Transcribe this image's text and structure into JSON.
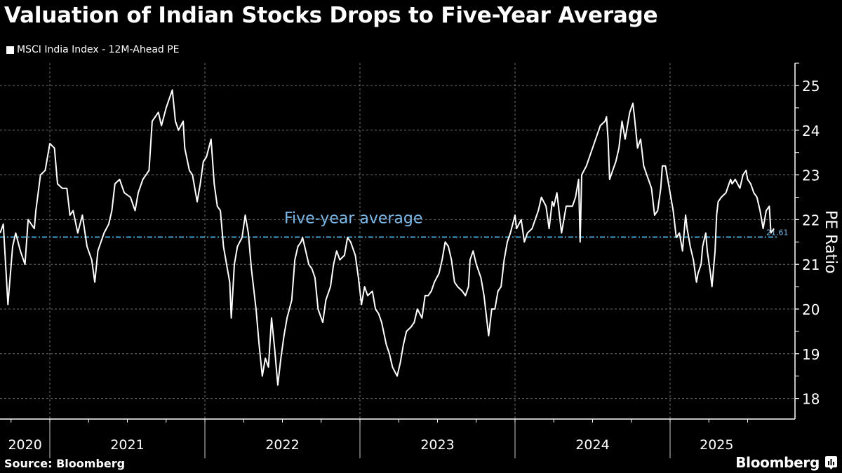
{
  "title": "Valuation of Indian Stocks Drops to Five-Year Average",
  "legend": {
    "label": "MSCI India Index - 12M-Ahead PE"
  },
  "footer": {
    "source": "Source: Bloomberg",
    "brand": "Bloomberg"
  },
  "icons": {
    "brand_icon": "bloomberg-chart-icon"
  },
  "colors": {
    "line": "#ffffff",
    "average": "#4ab8e6",
    "annotation": "#7ab8e8",
    "grid": "#8a8a8a"
  },
  "chart_data": {
    "type": "line",
    "title": "Valuation of Indian Stocks Drops to Five-Year Average",
    "xlabel": "",
    "ylabel": "PE Ratio",
    "ylim": [
      17.6,
      25.4
    ],
    "xlim": [
      2020.68,
      2025.41
    ],
    "y_ticks": [
      18,
      19,
      20,
      21,
      22,
      23,
      24,
      25
    ],
    "x_tick_labels": [
      "2020",
      "2021",
      "2022",
      "2023",
      "2024",
      "2025"
    ],
    "x_tick_label_positions": [
      2020.84,
      2021.5,
      2022.5,
      2023.5,
      2024.5,
      2025.3
    ],
    "year_boundaries": [
      2021,
      2022,
      2023,
      2024,
      2025
    ],
    "grid": true,
    "legend_position": "top-left",
    "reference_line": {
      "label": "Five-year average",
      "value": 21.61,
      "value_label": "21.61"
    },
    "series": [
      {
        "name": "MSCI India Index - 12M-Ahead PE",
        "points": [
          [
            2020.68,
            21.7
          ],
          [
            2020.7,
            21.9
          ],
          [
            2020.73,
            20.1
          ],
          [
            2020.76,
            21.4
          ],
          [
            2020.78,
            21.7
          ],
          [
            2020.81,
            21.3
          ],
          [
            2020.84,
            21.0
          ],
          [
            2020.86,
            22.0
          ],
          [
            2020.9,
            21.8
          ],
          [
            2020.91,
            22.2
          ],
          [
            2020.94,
            23.0
          ],
          [
            2020.97,
            23.1
          ],
          [
            2021.0,
            23.7
          ],
          [
            2021.03,
            23.6
          ],
          [
            2021.05,
            22.8
          ],
          [
            2021.08,
            22.7
          ],
          [
            2021.11,
            22.7
          ],
          [
            2021.13,
            22.1
          ],
          [
            2021.15,
            22.2
          ],
          [
            2021.18,
            21.7
          ],
          [
            2021.21,
            22.1
          ],
          [
            2021.24,
            21.4
          ],
          [
            2021.27,
            21.1
          ],
          [
            2021.29,
            20.6
          ],
          [
            2021.31,
            21.3
          ],
          [
            2021.35,
            21.7
          ],
          [
            2021.38,
            21.9
          ],
          [
            2021.4,
            22.2
          ],
          [
            2021.42,
            22.8
          ],
          [
            2021.45,
            22.9
          ],
          [
            2021.48,
            22.6
          ],
          [
            2021.52,
            22.5
          ],
          [
            2021.55,
            22.2
          ],
          [
            2021.57,
            22.6
          ],
          [
            2021.6,
            22.9
          ],
          [
            2021.64,
            23.1
          ],
          [
            2021.66,
            24.2
          ],
          [
            2021.7,
            24.4
          ],
          [
            2021.72,
            24.1
          ],
          [
            2021.75,
            24.5
          ],
          [
            2021.77,
            24.7
          ],
          [
            2021.79,
            24.9
          ],
          [
            2021.81,
            24.2
          ],
          [
            2021.83,
            24.0
          ],
          [
            2021.86,
            24.2
          ],
          [
            2021.87,
            23.6
          ],
          [
            2021.9,
            23.1
          ],
          [
            2021.92,
            23.0
          ],
          [
            2021.95,
            22.4
          ],
          [
            2021.97,
            22.8
          ],
          [
            2021.99,
            23.3
          ],
          [
            2022.01,
            23.4
          ],
          [
            2022.04,
            23.8
          ],
          [
            2022.06,
            22.8
          ],
          [
            2022.08,
            22.3
          ],
          [
            2022.1,
            22.2
          ],
          [
            2022.12,
            21.4
          ],
          [
            2022.14,
            21.0
          ],
          [
            2022.16,
            20.6
          ],
          [
            2022.17,
            19.8
          ],
          [
            2022.19,
            21.0
          ],
          [
            2022.21,
            21.4
          ],
          [
            2022.24,
            21.6
          ],
          [
            2022.26,
            22.1
          ],
          [
            2022.28,
            21.7
          ],
          [
            2022.3,
            20.9
          ],
          [
            2022.33,
            20.0
          ],
          [
            2022.35,
            19.2
          ],
          [
            2022.37,
            18.5
          ],
          [
            2022.39,
            18.9
          ],
          [
            2022.41,
            18.7
          ],
          [
            2022.43,
            19.8
          ],
          [
            2022.45,
            19.1
          ],
          [
            2022.47,
            18.3
          ],
          [
            2022.49,
            18.9
          ],
          [
            2022.51,
            19.4
          ],
          [
            2022.53,
            19.8
          ],
          [
            2022.56,
            20.2
          ],
          [
            2022.58,
            21.1
          ],
          [
            2022.6,
            21.4
          ],
          [
            2022.62,
            21.5
          ],
          [
            2022.63,
            21.6
          ],
          [
            2022.65,
            21.3
          ],
          [
            2022.67,
            21.0
          ],
          [
            2022.69,
            20.9
          ],
          [
            2022.71,
            20.7
          ],
          [
            2022.73,
            20.0
          ],
          [
            2022.76,
            19.7
          ],
          [
            2022.78,
            20.2
          ],
          [
            2022.81,
            20.5
          ],
          [
            2022.83,
            21.0
          ],
          [
            2022.85,
            21.3
          ],
          [
            2022.87,
            21.1
          ],
          [
            2022.9,
            21.2
          ],
          [
            2022.92,
            21.6
          ],
          [
            2022.94,
            21.5
          ],
          [
            2022.97,
            21.2
          ],
          [
            2022.99,
            20.7
          ],
          [
            2023.01,
            20.1
          ],
          [
            2023.03,
            20.5
          ],
          [
            2023.05,
            20.3
          ],
          [
            2023.08,
            20.4
          ],
          [
            2023.1,
            20.0
          ],
          [
            2023.12,
            19.9
          ],
          [
            2023.14,
            19.7
          ],
          [
            2023.17,
            19.2
          ],
          [
            2023.19,
            19.0
          ],
          [
            2023.21,
            18.7
          ],
          [
            2023.24,
            18.5
          ],
          [
            2023.26,
            18.8
          ],
          [
            2023.28,
            19.2
          ],
          [
            2023.3,
            19.5
          ],
          [
            2023.33,
            19.6
          ],
          [
            2023.35,
            19.7
          ],
          [
            2023.37,
            20.0
          ],
          [
            2023.4,
            19.8
          ],
          [
            2023.42,
            20.3
          ],
          [
            2023.44,
            20.3
          ],
          [
            2023.46,
            20.4
          ],
          [
            2023.48,
            20.6
          ],
          [
            2023.51,
            20.8
          ],
          [
            2023.53,
            21.1
          ],
          [
            2023.55,
            21.5
          ],
          [
            2023.57,
            21.4
          ],
          [
            2023.59,
            21.1
          ],
          [
            2023.61,
            20.6
          ],
          [
            2023.63,
            20.5
          ],
          [
            2023.66,
            20.4
          ],
          [
            2023.68,
            20.3
          ],
          [
            2023.7,
            20.5
          ],
          [
            2023.71,
            21.1
          ],
          [
            2023.73,
            21.3
          ],
          [
            2023.75,
            21.0
          ],
          [
            2023.78,
            20.7
          ],
          [
            2023.8,
            20.3
          ],
          [
            2023.82,
            19.7
          ],
          [
            2023.83,
            19.4
          ],
          [
            2023.85,
            20.0
          ],
          [
            2023.87,
            20.0
          ],
          [
            2023.89,
            20.4
          ],
          [
            2023.91,
            20.5
          ],
          [
            2023.93,
            21.1
          ],
          [
            2023.95,
            21.5
          ],
          [
            2023.97,
            21.7
          ],
          [
            2024.0,
            22.1
          ],
          [
            2024.01,
            21.8
          ],
          [
            2024.04,
            22.0
          ],
          [
            2024.06,
            21.5
          ],
          [
            2024.08,
            21.7
          ],
          [
            2024.11,
            21.8
          ],
          [
            2024.13,
            22.0
          ],
          [
            2024.15,
            22.2
          ],
          [
            2024.17,
            22.5
          ],
          [
            2024.2,
            22.3
          ],
          [
            2024.22,
            21.8
          ],
          [
            2024.24,
            22.4
          ],
          [
            2024.25,
            22.3
          ],
          [
            2024.27,
            22.6
          ],
          [
            2024.3,
            21.7
          ],
          [
            2024.33,
            22.3
          ],
          [
            2024.34,
            22.3
          ],
          [
            2024.37,
            22.3
          ],
          [
            2024.39,
            22.5
          ],
          [
            2024.41,
            22.9
          ],
          [
            2024.42,
            21.5
          ],
          [
            2024.43,
            23.0
          ],
          [
            2024.46,
            23.2
          ],
          [
            2024.47,
            23.3
          ],
          [
            2024.49,
            23.5
          ],
          [
            2024.51,
            23.7
          ],
          [
            2024.53,
            23.9
          ],
          [
            2024.55,
            24.1
          ],
          [
            2024.58,
            24.2
          ],
          [
            2024.59,
            24.3
          ],
          [
            2024.6,
            23.8
          ],
          [
            2024.61,
            22.9
          ],
          [
            2024.63,
            23.1
          ],
          [
            2024.65,
            23.3
          ],
          [
            2024.67,
            23.6
          ],
          [
            2024.69,
            24.2
          ],
          [
            2024.71,
            23.8
          ],
          [
            2024.72,
            24.0
          ],
          [
            2024.74,
            24.4
          ],
          [
            2024.76,
            24.6
          ],
          [
            2024.77,
            24.3
          ],
          [
            2024.79,
            23.6
          ],
          [
            2024.81,
            23.8
          ],
          [
            2024.83,
            23.2
          ],
          [
            2024.85,
            23.0
          ],
          [
            2024.86,
            22.9
          ],
          [
            2024.88,
            22.7
          ],
          [
            2024.9,
            22.1
          ],
          [
            2024.92,
            22.2
          ],
          [
            2024.94,
            22.7
          ],
          [
            2024.95,
            23.2
          ],
          [
            2024.97,
            23.2
          ],
          [
            2024.99,
            22.8
          ],
          [
            2025.01,
            22.4
          ],
          [
            2025.02,
            22.2
          ],
          [
            2025.04,
            21.6
          ],
          [
            2025.06,
            21.7
          ],
          [
            2025.08,
            21.3
          ],
          [
            2025.09,
            21.7
          ],
          [
            2025.1,
            22.1
          ],
          [
            2025.11,
            21.8
          ],
          [
            2025.13,
            21.4
          ],
          [
            2025.15,
            21.1
          ],
          [
            2025.17,
            20.6
          ],
          [
            2025.18,
            20.8
          ],
          [
            2025.2,
            21.0
          ],
          [
            2025.21,
            21.4
          ],
          [
            2025.23,
            21.7
          ],
          [
            2025.24,
            21.3
          ],
          [
            2025.26,
            20.8
          ],
          [
            2025.27,
            20.5
          ],
          [
            2025.29,
            21.3
          ],
          [
            2025.3,
            22.1
          ],
          [
            2025.31,
            22.4
          ],
          [
            2025.33,
            22.5
          ],
          [
            2025.36,
            22.6
          ],
          [
            2025.37,
            22.7
          ],
          [
            2025.39,
            22.9
          ],
          [
            2025.4,
            22.8
          ],
          [
            2025.42,
            22.9
          ],
          [
            2025.45,
            22.7
          ],
          [
            2025.47,
            23.0
          ],
          [
            2025.49,
            23.1
          ],
          [
            2025.5,
            22.9
          ],
          [
            2025.52,
            22.8
          ],
          [
            2025.54,
            22.6
          ],
          [
            2025.56,
            22.5
          ],
          [
            2025.58,
            22.2
          ],
          [
            2025.6,
            21.8
          ],
          [
            2025.62,
            22.2
          ],
          [
            2025.64,
            22.3
          ],
          [
            2025.65,
            21.7
          ],
          [
            2025.67,
            21.8
          ]
        ]
      }
    ]
  }
}
